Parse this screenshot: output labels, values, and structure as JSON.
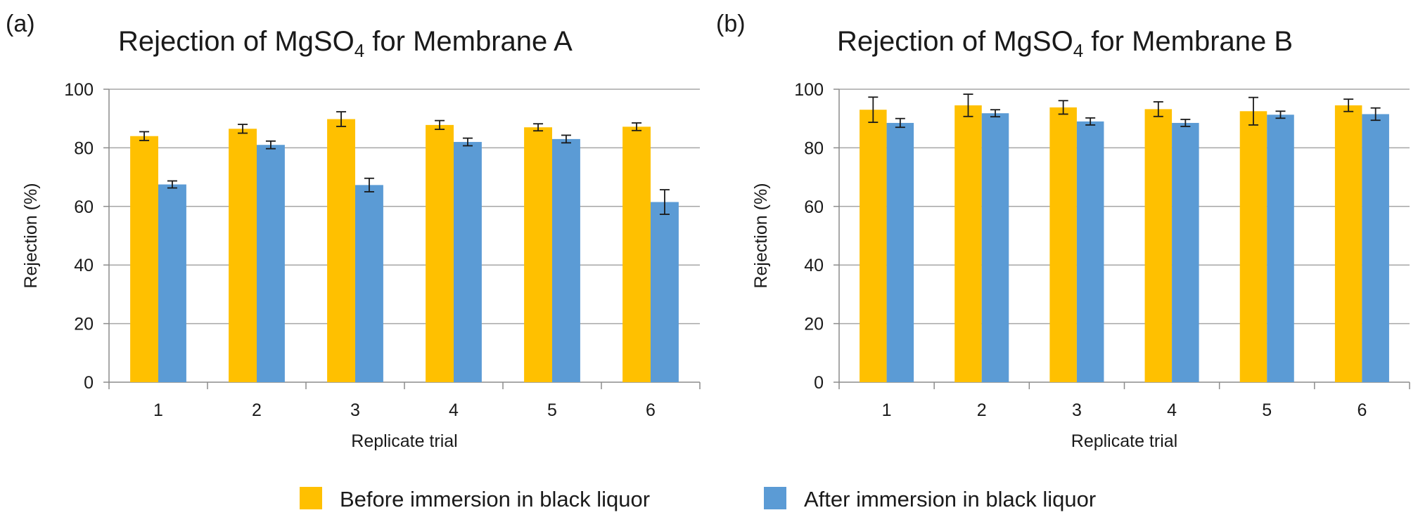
{
  "legend": {
    "items": [
      {
        "label": "Before immersion in black liquor",
        "color": "#FFC000"
      },
      {
        "label": "After immersion in black liquor",
        "color": "#5B9BD5"
      }
    ]
  },
  "chart_data": [
    {
      "panel": "(a)",
      "type": "bar",
      "title_main": "Rejection of MgSO",
      "title_sub": "4",
      "title_tail": " for Membrane A",
      "xlabel": "Replicate trial",
      "ylabel": "Rejection (%)",
      "ylim": [
        0,
        100
      ],
      "yticks": [
        0,
        20,
        40,
        60,
        80,
        100
      ],
      "grid": true,
      "categories": [
        "1",
        "2",
        "3",
        "4",
        "5",
        "6"
      ],
      "series": [
        {
          "name": "Before immersion in black liquor",
          "color": "#FFC000",
          "values": [
            84,
            86.5,
            89.8,
            87.8,
            87,
            87.2
          ],
          "errors": [
            1.5,
            1.5,
            2.5,
            1.5,
            1.2,
            1.3
          ]
        },
        {
          "name": "After immersion in black liquor",
          "color": "#5B9BD5",
          "values": [
            67.5,
            81,
            67.3,
            82,
            83,
            61.5
          ],
          "errors": [
            1.2,
            1.3,
            2.3,
            1.3,
            1.3,
            4.2
          ]
        }
      ]
    },
    {
      "panel": "(b)",
      "type": "bar",
      "title_main": "Rejection of MgSO",
      "title_sub": "4",
      "title_tail": " for Membrane B",
      "xlabel": "Replicate trial",
      "ylabel": "Rejection (%)",
      "ylim": [
        0,
        100
      ],
      "yticks": [
        0,
        20,
        40,
        60,
        80,
        100
      ],
      "grid": true,
      "categories": [
        "1",
        "2",
        "3",
        "4",
        "5",
        "6"
      ],
      "series": [
        {
          "name": "Before immersion in black liquor",
          "color": "#FFC000",
          "values": [
            93,
            94.5,
            93.8,
            93.2,
            92.5,
            94.5
          ],
          "errors": [
            4.3,
            3.8,
            2.3,
            2.5,
            4.7,
            2.1
          ]
        },
        {
          "name": "After immersion in black liquor",
          "color": "#5B9BD5",
          "values": [
            88.5,
            91.8,
            89,
            88.5,
            91.3,
            91.5
          ],
          "errors": [
            1.5,
            1.2,
            1.2,
            1.2,
            1.2,
            2.1
          ]
        }
      ]
    }
  ]
}
